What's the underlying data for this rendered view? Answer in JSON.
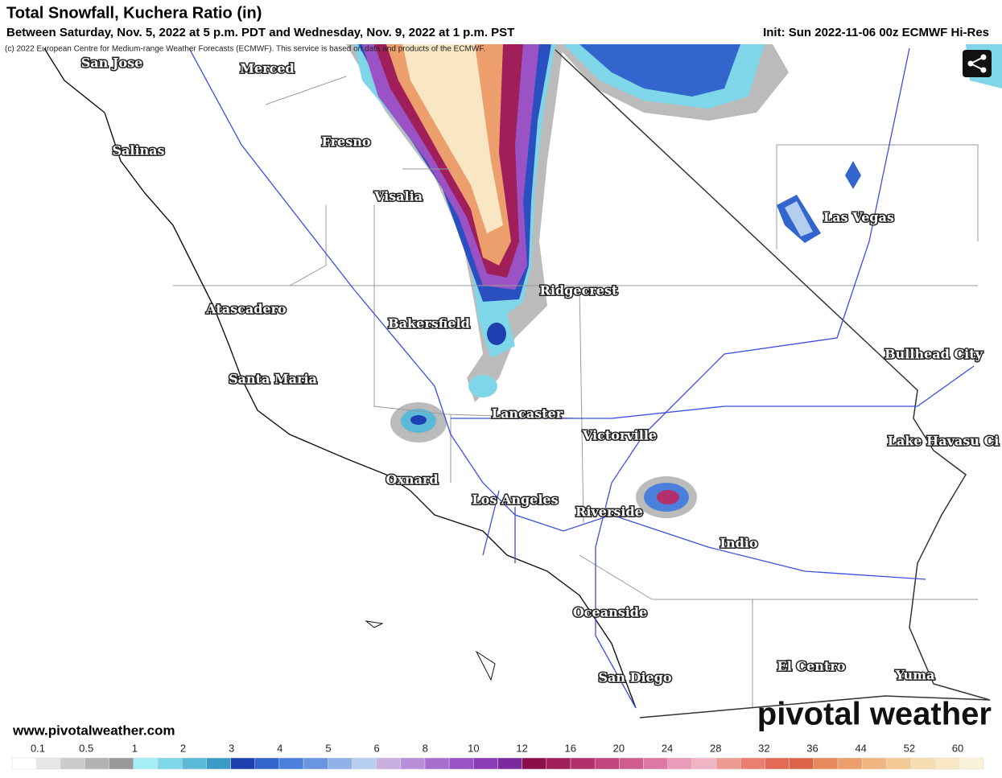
{
  "header": {
    "title": "Total Snowfall, Kuchera Ratio (in)",
    "subtitle": "Between Saturday, Nov. 5, 2022 at 5 p.m. PDT and Wednesday, Nov. 9, 2022 at 1 p.m. PST",
    "init": "Init: Sun 2022-11-06 00z ECMWF Hi-Res"
  },
  "copyright": "(c) 2022 European Centre for Medium-range Weather Forecasts (ECMWF). This service is based on data and products of the ECMWF.",
  "cities": [
    "San Jose",
    "Merced",
    "Fresno",
    "Salinas",
    "Visalia",
    "Las Vegas",
    "Ridgecrest",
    "Atascadero",
    "Bakersfield",
    "Bullhead City",
    "Santa Maria",
    "Lancaster",
    "Victorville",
    "Lake Havasu Ci",
    "Oxnard",
    "Los Angeles",
    "Riverside",
    "Indio",
    "Oceanside",
    "El Centro",
    "San Diego",
    "Yuma"
  ],
  "website": "www.pivotalweather.com",
  "brand": "pivotal weather",
  "legend": {
    "ticks": [
      0.1,
      0.5,
      1,
      2,
      3,
      4,
      5,
      6,
      8,
      10,
      12,
      16,
      20,
      24,
      28,
      32,
      36,
      44,
      52,
      60
    ],
    "colors": [
      "#ffffff",
      "#e6e6e6",
      "#cccccc",
      "#b3b3b3",
      "#999999",
      "#a6eef5",
      "#7fd6e8",
      "#5bb8d6",
      "#3a9cc4",
      "#1d3fb0",
      "#3366cc",
      "#4a7fdc",
      "#6a96e0",
      "#8fb3e8",
      "#b5cdee",
      "#c9b0e0",
      "#b88ed8",
      "#a86fcf",
      "#9a52c5",
      "#8a3bb5",
      "#7a2a9c",
      "#8a0f4a",
      "#a01f5a",
      "#b4306c",
      "#c2457e",
      "#cf5c8f",
      "#dd79a4",
      "#e99cb9",
      "#f0b5c4",
      "#ee9a94",
      "#ea7e70",
      "#e36a55",
      "#dc6446",
      "#e58a5c",
      "#ec9e6c",
      "#f0b681",
      "#f3c995",
      "#f6dcaf",
      "#f8e7c2",
      "#faf2d8"
    ]
  }
}
